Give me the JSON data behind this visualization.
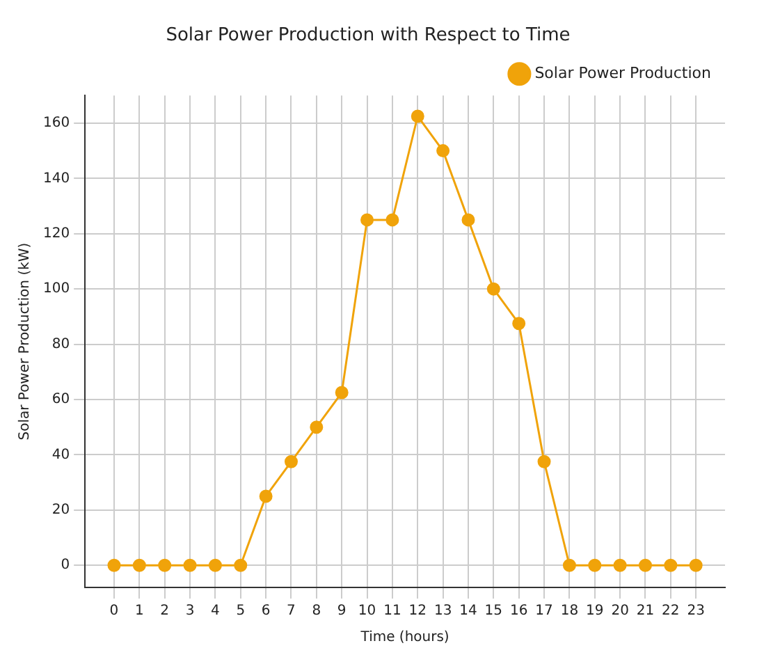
{
  "chart_data": {
    "type": "line",
    "title": "Solar Power Production with Respect to Time",
    "xlabel": "Time (hours)",
    "ylabel": "Solar Power Production (kW)",
    "x": [
      0,
      1,
      2,
      3,
      4,
      5,
      6,
      7,
      8,
      9,
      10,
      11,
      12,
      13,
      14,
      15,
      16,
      17,
      18,
      19,
      20,
      21,
      22,
      23
    ],
    "series": [
      {
        "name": "Solar Power Production",
        "color": "#f0a30a",
        "values": [
          0,
          0,
          0,
          0,
          0,
          0,
          25,
          37.5,
          50,
          62.5,
          125,
          125,
          162.5,
          150,
          125,
          100,
          87.5,
          37.5,
          0,
          0,
          0,
          0,
          0,
          0
        ]
      }
    ],
    "xlim": [
      -1.15,
      24.15
    ],
    "xticks": [
      0,
      1,
      2,
      3,
      4,
      5,
      6,
      7,
      8,
      9,
      10,
      11,
      12,
      13,
      14,
      15,
      16,
      17,
      18,
      19,
      20,
      21,
      22,
      23
    ],
    "ylim": [
      -8,
      170
    ],
    "yticks": [
      0,
      20,
      40,
      60,
      80,
      100,
      120,
      140,
      160
    ],
    "grid": true,
    "legend": "top right",
    "marker": "circle",
    "line_style": "solid"
  }
}
